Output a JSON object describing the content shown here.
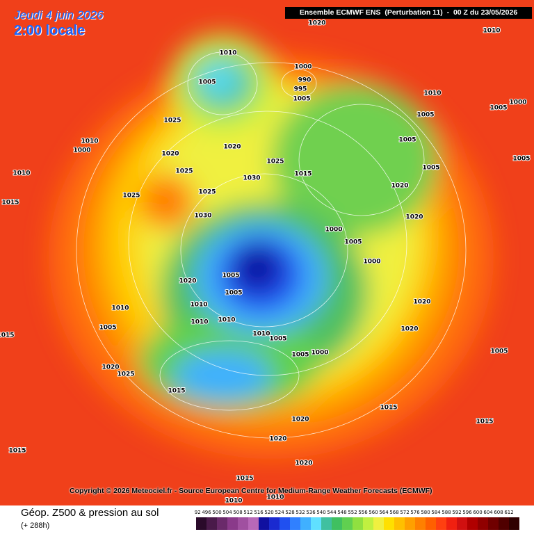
{
  "header": {
    "date": "Jeudi 4 juin 2026",
    "time": "2:00 locale",
    "run": "Ensemble ECMWF ENS  (Perturbation 11)  -  00 Z du 23/05/2026"
  },
  "copyright": "Copyright © 2026 Meteociel.fr - Source European Centre for Medium-Range Weather Forecasts (ECMWF)",
  "legend": {
    "title": "Géop. Z500 & pression au sol",
    "subtitle": "(+ 288h)"
  },
  "colorbar": {
    "values": [
      492,
      496,
      500,
      504,
      508,
      512,
      516,
      520,
      524,
      528,
      532,
      536,
      540,
      544,
      548,
      552,
      556,
      560,
      564,
      568,
      572,
      576,
      580,
      584,
      588,
      592,
      596,
      600,
      604,
      608,
      612
    ],
    "colors": [
      "#2a0a2a",
      "#4a1a4a",
      "#6a2a6a",
      "#8a3a8a",
      "#a050a0",
      "#b868b8",
      "#1010a0",
      "#1a2ad0",
      "#2050f0",
      "#3080ff",
      "#40b0ff",
      "#60e0ff",
      "#40c0a0",
      "#40c060",
      "#60d050",
      "#90e040",
      "#c0f040",
      "#f0f040",
      "#ffe000",
      "#ffc000",
      "#ffa000",
      "#ff8000",
      "#ff6000",
      "#ff4010",
      "#f02010",
      "#d01010",
      "#b00000",
      "#900000",
      "#700000",
      "#500000",
      "#300000"
    ]
  },
  "isobar_labels": [
    1020,
    1010,
    1010,
    1000,
    1005,
    990,
    995,
    1005,
    1010,
    1000,
    1005,
    1005,
    1025,
    1010,
    1000,
    1020,
    1020,
    1005,
    1025,
    1025,
    1015,
    1005,
    1030,
    1010,
    1025,
    1025,
    1020,
    1015,
    1030,
    1000,
    1005,
    1020,
    1000,
    1005,
    1020,
    1005,
    1010,
    1010,
    1010,
    1010,
    1010,
    1005,
    1000,
    1005,
    1020,
    1020,
    1005,
    1020,
    1025,
    1015,
    1020,
    1020,
    1015,
    1015,
    1020,
    1015,
    1010,
    1010,
    1015,
    1015,
    1005,
    1005
  ]
}
